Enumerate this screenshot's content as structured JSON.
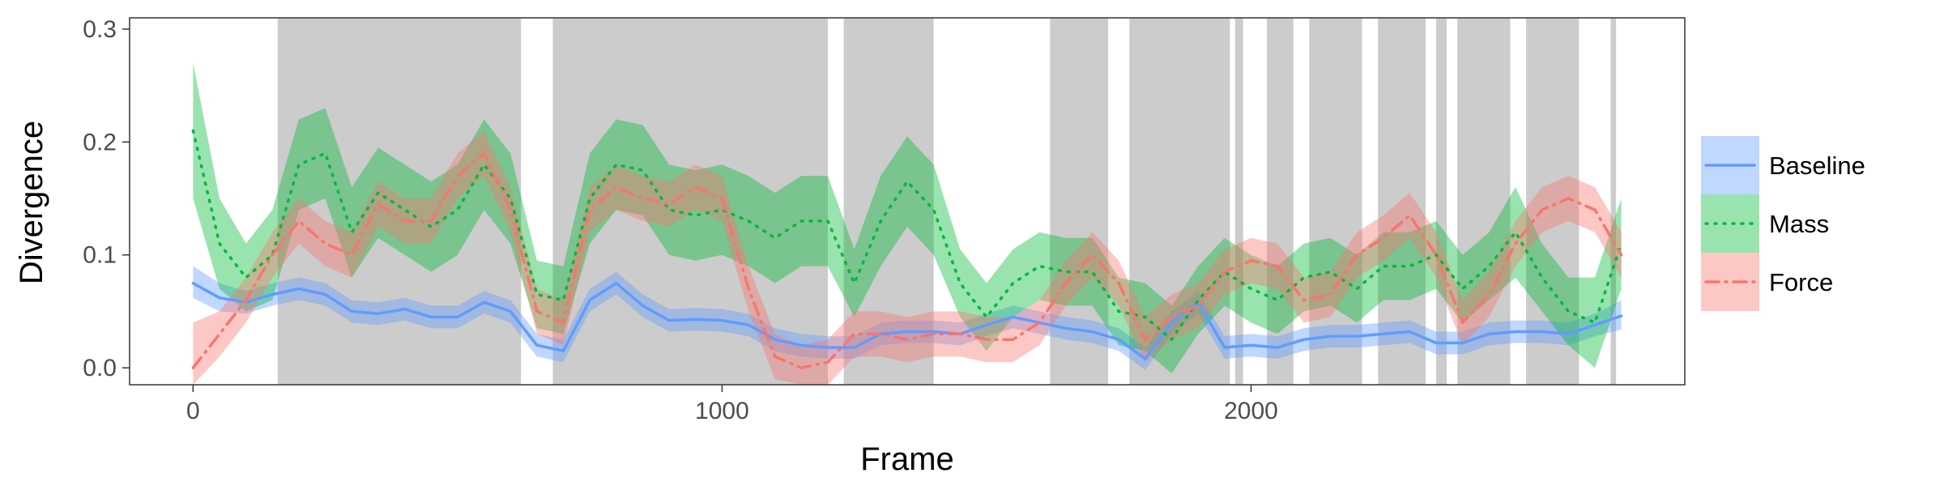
{
  "chart_data": {
    "type": "line",
    "title": "",
    "xlabel": "Frame",
    "ylabel": "Divergence",
    "xlim": [
      -120,
      2820
    ],
    "ylim": [
      -0.015,
      0.31
    ],
    "x_ticks": [
      0,
      1000,
      2000
    ],
    "x_tick_labels": [
      "0",
      "1000",
      "2000"
    ],
    "y_ticks": [
      0.0,
      0.1,
      0.2,
      0.3
    ],
    "y_tick_labels": [
      "0.0",
      "0.1",
      "0.2",
      "0.3"
    ],
    "grid": false,
    "legend_position": "right",
    "shaded_regions": [
      [
        160,
        620
      ],
      [
        680,
        1200
      ],
      [
        1230,
        1400
      ],
      [
        1620,
        1730
      ],
      [
        1770,
        1960
      ],
      [
        1970,
        1985
      ],
      [
        2030,
        2080
      ],
      [
        2110,
        2210
      ],
      [
        2240,
        2330
      ],
      [
        2350,
        2370
      ],
      [
        2390,
        2490
      ],
      [
        2520,
        2620
      ],
      [
        2680,
        2690
      ]
    ],
    "series": [
      {
        "name": "Baseline",
        "color": "#619CFF",
        "linestyle": "solid",
        "x": [
          0,
          50,
          100,
          150,
          200,
          250,
          300,
          350,
          400,
          450,
          500,
          550,
          600,
          650,
          700,
          750,
          800,
          850,
          900,
          950,
          1000,
          1050,
          1100,
          1150,
          1200,
          1250,
          1300,
          1350,
          1400,
          1450,
          1500,
          1550,
          1600,
          1650,
          1700,
          1750,
          1800,
          1850,
          1900,
          1950,
          2000,
          2050,
          2100,
          2150,
          2200,
          2250,
          2300,
          2350,
          2400,
          2450,
          2500,
          2550,
          2600,
          2650,
          2700
        ],
        "y": [
          0.075,
          0.062,
          0.058,
          0.065,
          0.07,
          0.065,
          0.05,
          0.048,
          0.052,
          0.045,
          0.045,
          0.058,
          0.05,
          0.02,
          0.015,
          0.06,
          0.075,
          0.055,
          0.042,
          0.043,
          0.042,
          0.038,
          0.025,
          0.02,
          0.018,
          0.018,
          0.03,
          0.032,
          0.032,
          0.03,
          0.038,
          0.045,
          0.04,
          0.035,
          0.032,
          0.025,
          0.008,
          0.04,
          0.058,
          0.018,
          0.02,
          0.018,
          0.025,
          0.028,
          0.028,
          0.03,
          0.032,
          0.022,
          0.022,
          0.03,
          0.032,
          0.032,
          0.03,
          0.038,
          0.046
        ],
        "lower": [
          0.062,
          0.05,
          0.048,
          0.055,
          0.06,
          0.055,
          0.04,
          0.038,
          0.042,
          0.035,
          0.035,
          0.048,
          0.04,
          0.01,
          0.005,
          0.05,
          0.065,
          0.045,
          0.032,
          0.033,
          0.032,
          0.028,
          0.015,
          0.01,
          0.008,
          0.008,
          0.02,
          0.022,
          0.022,
          0.02,
          0.028,
          0.035,
          0.03,
          0.025,
          0.022,
          0.015,
          -0.002,
          0.03,
          0.048,
          0.008,
          0.01,
          0.008,
          0.015,
          0.018,
          0.018,
          0.02,
          0.022,
          0.012,
          0.012,
          0.02,
          0.022,
          0.022,
          0.02,
          0.028,
          0.034
        ],
        "upper": [
          0.09,
          0.075,
          0.068,
          0.075,
          0.08,
          0.075,
          0.06,
          0.058,
          0.062,
          0.055,
          0.055,
          0.068,
          0.06,
          0.03,
          0.025,
          0.07,
          0.085,
          0.065,
          0.052,
          0.053,
          0.052,
          0.048,
          0.035,
          0.03,
          0.028,
          0.028,
          0.04,
          0.042,
          0.042,
          0.04,
          0.048,
          0.055,
          0.05,
          0.045,
          0.042,
          0.035,
          0.018,
          0.05,
          0.068,
          0.028,
          0.03,
          0.028,
          0.035,
          0.038,
          0.038,
          0.04,
          0.042,
          0.032,
          0.032,
          0.04,
          0.042,
          0.042,
          0.04,
          0.048,
          0.06
        ]
      },
      {
        "name": "Mass",
        "color": "#00BA38",
        "linestyle": "dotted",
        "x": [
          0,
          50,
          100,
          150,
          200,
          250,
          300,
          350,
          400,
          450,
          500,
          550,
          600,
          650,
          700,
          750,
          800,
          850,
          900,
          950,
          1000,
          1050,
          1100,
          1150,
          1200,
          1250,
          1300,
          1350,
          1400,
          1450,
          1500,
          1550,
          1600,
          1650,
          1700,
          1750,
          1800,
          1850,
          1900,
          1950,
          2000,
          2050,
          2100,
          2150,
          2200,
          2250,
          2300,
          2350,
          2400,
          2450,
          2500,
          2550,
          2600,
          2650,
          2700
        ],
        "y": [
          0.21,
          0.11,
          0.08,
          0.1,
          0.18,
          0.19,
          0.12,
          0.155,
          0.14,
          0.125,
          0.14,
          0.18,
          0.15,
          0.065,
          0.06,
          0.15,
          0.18,
          0.175,
          0.14,
          0.135,
          0.14,
          0.13,
          0.115,
          0.13,
          0.13,
          0.075,
          0.13,
          0.165,
          0.14,
          0.075,
          0.045,
          0.075,
          0.09,
          0.085,
          0.085,
          0.05,
          0.045,
          0.025,
          0.06,
          0.085,
          0.07,
          0.06,
          0.08,
          0.085,
          0.07,
          0.09,
          0.09,
          0.1,
          0.07,
          0.09,
          0.12,
          0.08,
          0.05,
          0.04,
          0.11
        ],
        "lower": [
          0.15,
          0.07,
          0.05,
          0.06,
          0.14,
          0.15,
          0.08,
          0.115,
          0.1,
          0.085,
          0.1,
          0.14,
          0.11,
          0.035,
          0.03,
          0.11,
          0.14,
          0.135,
          0.1,
          0.095,
          0.1,
          0.09,
          0.075,
          0.09,
          0.09,
          0.045,
          0.09,
          0.125,
          0.1,
          0.045,
          0.015,
          0.045,
          0.06,
          0.055,
          0.055,
          0.02,
          0.015,
          -0.005,
          0.03,
          0.055,
          0.04,
          0.03,
          0.05,
          0.055,
          0.04,
          0.06,
          0.06,
          0.07,
          0.04,
          0.06,
          0.08,
          0.05,
          0.02,
          0.0,
          0.07
        ],
        "upper": [
          0.27,
          0.15,
          0.11,
          0.14,
          0.22,
          0.23,
          0.16,
          0.195,
          0.18,
          0.165,
          0.18,
          0.22,
          0.19,
          0.095,
          0.09,
          0.19,
          0.22,
          0.215,
          0.18,
          0.175,
          0.18,
          0.17,
          0.155,
          0.17,
          0.17,
          0.105,
          0.17,
          0.205,
          0.18,
          0.105,
          0.075,
          0.105,
          0.12,
          0.115,
          0.115,
          0.08,
          0.075,
          0.055,
          0.09,
          0.115,
          0.1,
          0.09,
          0.11,
          0.115,
          0.1,
          0.12,
          0.12,
          0.13,
          0.1,
          0.12,
          0.16,
          0.11,
          0.08,
          0.08,
          0.15
        ]
      },
      {
        "name": "Force",
        "color": "#F8766D",
        "linestyle": "dashdot",
        "x": [
          0,
          50,
          100,
          150,
          200,
          250,
          300,
          350,
          400,
          450,
          500,
          550,
          600,
          650,
          700,
          750,
          800,
          850,
          900,
          950,
          1000,
          1050,
          1100,
          1150,
          1200,
          1250,
          1300,
          1350,
          1400,
          1450,
          1500,
          1550,
          1600,
          1650,
          1700,
          1750,
          1800,
          1850,
          1900,
          1950,
          2000,
          2050,
          2100,
          2150,
          2200,
          2250,
          2300,
          2350,
          2400,
          2450,
          2500,
          2550,
          2600,
          2650,
          2700
        ],
        "y": [
          0.0,
          0.03,
          0.06,
          0.1,
          0.13,
          0.11,
          0.1,
          0.145,
          0.13,
          0.13,
          0.17,
          0.19,
          0.14,
          0.05,
          0.04,
          0.14,
          0.16,
          0.15,
          0.145,
          0.16,
          0.15,
          0.07,
          0.01,
          0.0,
          0.005,
          0.03,
          0.03,
          0.025,
          0.03,
          0.03,
          0.025,
          0.025,
          0.04,
          0.075,
          0.1,
          0.075,
          0.025,
          0.045,
          0.055,
          0.085,
          0.095,
          0.09,
          0.06,
          0.065,
          0.1,
          0.115,
          0.135,
          0.1,
          0.04,
          0.065,
          0.11,
          0.14,
          0.15,
          0.14,
          0.1
        ],
        "lower": [
          -0.015,
          0.01,
          0.04,
          0.08,
          0.11,
          0.09,
          0.08,
          0.125,
          0.11,
          0.11,
          0.15,
          0.17,
          0.12,
          0.03,
          0.02,
          0.12,
          0.14,
          0.13,
          0.125,
          0.14,
          0.13,
          0.05,
          -0.01,
          -0.015,
          -0.015,
          0.01,
          0.01,
          0.005,
          0.01,
          0.01,
          0.005,
          0.005,
          0.02,
          0.055,
          0.08,
          0.055,
          0.005,
          0.025,
          0.035,
          0.065,
          0.075,
          0.07,
          0.04,
          0.045,
          0.08,
          0.095,
          0.115,
          0.08,
          0.02,
          0.045,
          0.09,
          0.12,
          0.13,
          0.12,
          0.08
        ],
        "upper": [
          0.04,
          0.05,
          0.08,
          0.12,
          0.15,
          0.13,
          0.12,
          0.165,
          0.15,
          0.15,
          0.19,
          0.21,
          0.16,
          0.07,
          0.06,
          0.16,
          0.18,
          0.17,
          0.165,
          0.18,
          0.17,
          0.09,
          0.03,
          0.02,
          0.025,
          0.05,
          0.05,
          0.045,
          0.05,
          0.05,
          0.045,
          0.045,
          0.06,
          0.095,
          0.12,
          0.095,
          0.045,
          0.065,
          0.075,
          0.105,
          0.115,
          0.11,
          0.08,
          0.085,
          0.12,
          0.135,
          0.155,
          0.12,
          0.06,
          0.085,
          0.13,
          0.16,
          0.17,
          0.16,
          0.12
        ]
      }
    ]
  }
}
